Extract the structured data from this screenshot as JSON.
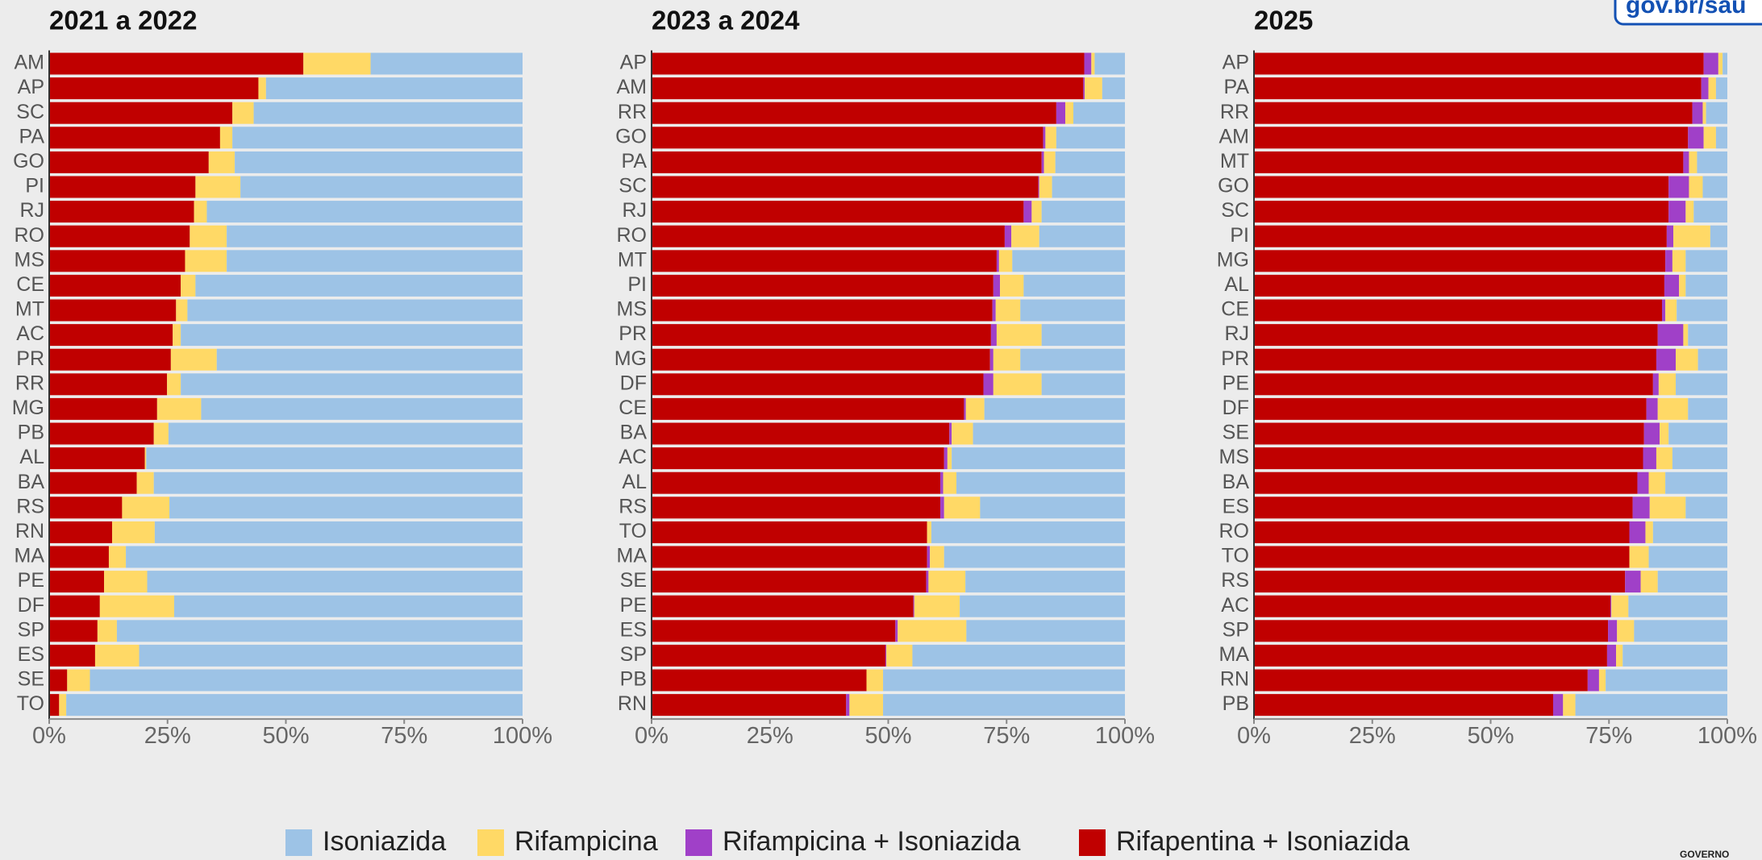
{
  "logo": "gov.br/sau",
  "footer": "GOVERNO",
  "chart_data": [
    {
      "type": "bar",
      "orientation": "horizontal",
      "stacked": true,
      "title": "2021 a 2022",
      "categories": [
        "AM",
        "AP",
        "SC",
        "PA",
        "GO",
        "PI",
        "RJ",
        "RO",
        "MS",
        "CE",
        "MT",
        "AC",
        "PR",
        "RR",
        "MG",
        "PB",
        "AL",
        "BA",
        "RS",
        "RN",
        "MA",
        "PE",
        "DF",
        "SP",
        "ES",
        "SE",
        "TO"
      ],
      "series": [
        {
          "name": "Rifapentina + Isoniazida",
          "color": "#c00000",
          "values": [
            53.7,
            44.2,
            38.7,
            36.1,
            33.7,
            30.9,
            30.6,
            29.7,
            28.7,
            27.8,
            26.8,
            26.1,
            25.7,
            24.9,
            22.8,
            22.1,
            20.2,
            18.5,
            15.4,
            13.3,
            12.6,
            11.6,
            10.7,
            10.2,
            9.7,
            3.8,
            2.1
          ]
        },
        {
          "name": "Rifampicina + Isoniazida",
          "color": "#a040c8",
          "values": [
            0,
            0,
            0,
            0,
            0,
            0,
            0,
            0,
            0,
            0,
            0,
            0,
            0,
            0,
            0,
            0,
            0,
            0,
            0,
            0,
            0,
            0,
            0,
            0,
            0,
            0,
            0
          ]
        },
        {
          "name": "Rifampicina",
          "color": "#ffd966",
          "values": [
            14.2,
            1.6,
            4.5,
            2.6,
            5.5,
            9.5,
            2.7,
            7.8,
            8.8,
            3.1,
            2.4,
            1.7,
            9.7,
            2.9,
            9.3,
            3.1,
            0.3,
            3.6,
            10,
            9,
            3.6,
            9.1,
            15.7,
            4.1,
            9.3,
            4.8,
            1.5
          ]
        },
        {
          "name": "Isoniazida",
          "color": "#9dc3e6",
          "values": [
            32.1,
            54.2,
            56.8,
            61.3,
            60.8,
            59.6,
            66.7,
            62.5,
            62.5,
            69.1,
            70.8,
            72.2,
            64.6,
            72.2,
            67.9,
            74.8,
            79.5,
            77.9,
            74.6,
            77.7,
            83.8,
            79.3,
            73.6,
            85.7,
            81,
            91.4,
            96.4
          ]
        }
      ],
      "xlim": [
        0,
        100
      ],
      "xticks": [
        {
          "value": 0,
          "label": "0%"
        },
        {
          "value": 25,
          "label": "25%"
        },
        {
          "value": 50,
          "label": "50%"
        },
        {
          "value": 75,
          "label": "75%"
        },
        {
          "value": 100,
          "label": "100%"
        }
      ]
    },
    {
      "type": "bar",
      "orientation": "horizontal",
      "stacked": true,
      "title": "2023 a 2024",
      "categories": [
        "AP",
        "AM",
        "RR",
        "GO",
        "PA",
        "SC",
        "RJ",
        "RO",
        "MT",
        "PI",
        "MS",
        "PR",
        "MG",
        "DF",
        "CE",
        "BA",
        "AC",
        "AL",
        "RS",
        "TO",
        "MA",
        "SE",
        "PE",
        "ES",
        "SP",
        "PB",
        "RN"
      ],
      "series": [
        {
          "name": "Rifapentina + Isoniazida",
          "color": "#c00000",
          "values": [
            91.4,
            91.2,
            85.5,
            82.7,
            82.4,
            81.7,
            78.6,
            74.6,
            72.9,
            72.2,
            72,
            71.7,
            71.5,
            70.1,
            66,
            62.9,
            61.8,
            61,
            61,
            58.2,
            58.2,
            58,
            55.3,
            51.5,
            49.4,
            45.4,
            41.1
          ]
        },
        {
          "name": "Rifampicina + Isoniazida",
          "color": "#a040c8",
          "values": [
            1.5,
            0.3,
            1.9,
            0.5,
            0.5,
            0.2,
            1.7,
            1.4,
            0.5,
            1.4,
            0.7,
            1.2,
            0.7,
            2.1,
            0.4,
            0.5,
            0.7,
            0.6,
            0.8,
            0,
            0.6,
            0.5,
            0.2,
            0.5,
            0.2,
            0,
            0.7
          ]
        },
        {
          "name": "Rifampicina",
          "color": "#ffd966",
          "values": [
            0.7,
            3.7,
            1.7,
            2.3,
            2.4,
            2.7,
            2.1,
            5.9,
            2.8,
            5,
            5.2,
            9.5,
            5.7,
            10.2,
            3.9,
            4.5,
            0.9,
            2.8,
            7.6,
            0.9,
            3,
            7.8,
            9.6,
            14.5,
            5.5,
            3.5,
            7.1
          ]
        },
        {
          "name": "Isoniazida",
          "color": "#9dc3e6",
          "values": [
            6.4,
            4.8,
            10.9,
            14.5,
            14.7,
            15.4,
            17.6,
            18.1,
            23.8,
            21.4,
            22.1,
            17.6,
            22.1,
            17.6,
            29.7,
            32.1,
            36.6,
            35.6,
            30.6,
            40.9,
            38.2,
            33.7,
            34.9,
            33.5,
            44.9,
            51.1,
            51.1
          ]
        }
      ],
      "xlim": [
        0,
        100
      ],
      "xticks": [
        {
          "value": 0,
          "label": "0%"
        },
        {
          "value": 25,
          "label": "25%"
        },
        {
          "value": 50,
          "label": "50%"
        },
        {
          "value": 75,
          "label": "75%"
        },
        {
          "value": 100,
          "label": "100%"
        }
      ]
    },
    {
      "type": "bar",
      "orientation": "horizontal",
      "stacked": true,
      "title": "2025",
      "categories": [
        "AP",
        "PA",
        "RR",
        "AM",
        "MT",
        "GO",
        "SC",
        "PI",
        "MG",
        "AL",
        "CE",
        "RJ",
        "PR",
        "PE",
        "DF",
        "SE",
        "MS",
        "BA",
        "ES",
        "RO",
        "TO",
        "RS",
        "AC",
        "SP",
        "MA",
        "RN",
        "PB"
      ],
      "series": [
        {
          "name": "Rifapentina + Isoniazida",
          "color": "#c00000",
          "values": [
            95,
            94.5,
            92.6,
            91.7,
            90.7,
            87.6,
            87.6,
            87.2,
            86.9,
            86.7,
            86.2,
            85.3,
            85,
            84.3,
            82.9,
            82.4,
            82.2,
            81,
            80,
            79.3,
            79.3,
            78.4,
            75.3,
            74.8,
            74.6,
            70.5,
            63.2
          ]
        },
        {
          "name": "Rifampicina + Isoniazida",
          "color": "#a040c8",
          "values": [
            3.1,
            1.5,
            2.2,
            3.3,
            1.2,
            4.3,
            3.6,
            1.4,
            1.5,
            3.1,
            0.7,
            5.4,
            4.1,
            1.2,
            2.4,
            3.3,
            2.8,
            2.4,
            3.6,
            3.4,
            0,
            3.3,
            0.2,
            1.9,
            1.9,
            2.4,
            2.1
          ]
        },
        {
          "name": "Rifampicina",
          "color": "#ffd966",
          "values": [
            0.9,
            1.6,
            0.7,
            2.6,
            1.7,
            2.9,
            1.7,
            7.8,
            2.8,
            1.4,
            2.4,
            1,
            4.7,
            3.6,
            6.4,
            1.9,
            3.4,
            3.5,
            7.6,
            1.6,
            4.1,
            3.6,
            3.6,
            3.6,
            1.4,
            1.4,
            2.6
          ]
        },
        {
          "name": "Isoniazida",
          "color": "#9dc3e6",
          "values": [
            1,
            2.4,
            4.5,
            2.4,
            6.4,
            5.2,
            7.1,
            3.6,
            8.8,
            8.8,
            10.7,
            8.3,
            6.2,
            10.9,
            8.3,
            12.4,
            11.6,
            13.1,
            8.8,
            15.7,
            16.6,
            14.7,
            20.9,
            19.7,
            22.1,
            25.7,
            32.1
          ]
        }
      ],
      "xlim": [
        0,
        100
      ],
      "xticks": [
        {
          "value": 0,
          "label": "0%"
        },
        {
          "value": 25,
          "label": "25%"
        },
        {
          "value": 50,
          "label": "50%"
        },
        {
          "value": 75,
          "label": "75%"
        },
        {
          "value": 100,
          "label": "100%"
        }
      ]
    }
  ]
}
